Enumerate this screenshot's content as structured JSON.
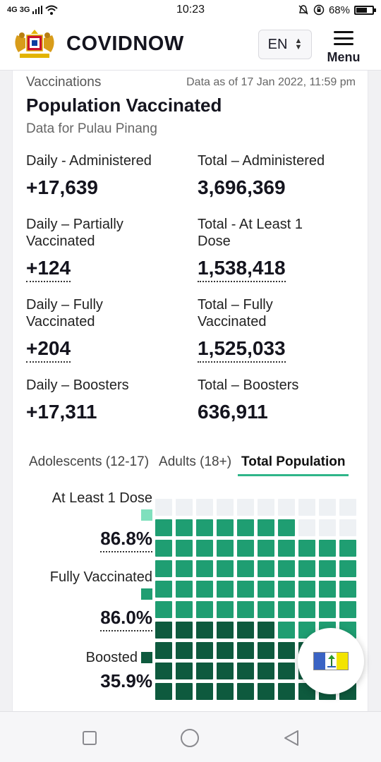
{
  "status_bar": {
    "network": "4G 3G",
    "time": "10:23",
    "battery_pct": "68%",
    "battery_level": 0.68
  },
  "header": {
    "brand": "COVIDNOW",
    "language": "EN",
    "menu_label": "Menu"
  },
  "card": {
    "section": "Vaccinations",
    "as_of": "Data as of 17 Jan 2022, 11:59 pm",
    "title": "Population Vaccinated",
    "subtitle": "Data for Pulau Pinang",
    "stats": {
      "daily_admin_label": "Daily - Administered",
      "daily_admin_value": "+17,639",
      "total_admin_label": "Total – Administered",
      "total_admin_value": "3,696,369",
      "daily_partial_label": "Daily – Partially Vaccinated",
      "daily_partial_value": "+124",
      "total_dose1_label": "Total - At Least 1 Dose",
      "total_dose1_value": "1,538,418",
      "daily_fully_label": "Daily – Fully Vaccinated",
      "daily_fully_value": "+204",
      "total_fully_label": "Total – Fully Vaccinated",
      "total_fully_value": "1,525,033",
      "daily_boost_label": "Daily – Boosters",
      "daily_boost_value": "+17,311",
      "total_boost_label": "Total – Boosters",
      "total_boost_value": "636,911"
    },
    "tabs": [
      "Adolescents (12-17)",
      "Adults (18+)",
      "Total Population"
    ],
    "active_tab": 2,
    "waffle": {
      "dose1_label": "At Least 1 Dose",
      "dose1_pct": "86.8%",
      "dose1_fraction": 0.868,
      "fully_label": "Fully Vaccinated",
      "fully_pct": "86.0%",
      "fully_fraction": 0.86,
      "boost_label": "Boosted",
      "boost_pct": "35.9%",
      "boost_fraction": 0.359,
      "colors": {
        "dose1": "#7fe0bd",
        "fully": "#1f9e72",
        "boost": "#0e5a3e",
        "empty": "#eef1f4"
      }
    }
  },
  "colors": {
    "tab_accent": "#2fb589"
  },
  "icons": {
    "crest": "malaysia-coat-of-arms-icon",
    "flag": "penang-flag-icon",
    "wifi": "wifi-icon",
    "mute": "bell-off-icon",
    "lock": "rotation-lock-icon"
  }
}
